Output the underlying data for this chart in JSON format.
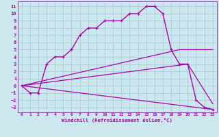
{
  "xlabel": "Windchill (Refroidissement éolien,°C)",
  "bg_color": "#cce8ee",
  "grid_color": "#aad0da",
  "line_color": "#aa00aa",
  "spine_color": "#8844aa",
  "xlim": [
    -0.5,
    23.5
  ],
  "ylim": [
    -3.7,
    11.7
  ],
  "xticks": [
    0,
    1,
    2,
    3,
    4,
    5,
    6,
    7,
    8,
    9,
    10,
    11,
    12,
    13,
    14,
    15,
    16,
    17,
    18,
    19,
    20,
    21,
    22,
    23
  ],
  "yticks": [
    -3,
    -2,
    -1,
    0,
    1,
    2,
    3,
    4,
    5,
    6,
    7,
    8,
    9,
    10,
    11
  ],
  "main_x": [
    0,
    1,
    2,
    3,
    4,
    5,
    6,
    7,
    8,
    9,
    10,
    11,
    12,
    13,
    14,
    15,
    16,
    17,
    18,
    19,
    20,
    21,
    22,
    23
  ],
  "main_y": [
    0,
    -1,
    -1,
    3,
    4,
    4,
    5,
    7,
    8,
    8,
    9,
    9,
    9,
    10,
    10,
    11,
    11,
    10,
    5,
    3,
    3,
    -2,
    -3,
    -3.3
  ],
  "line2_x": [
    0,
    19,
    23
  ],
  "line2_y": [
    0,
    5,
    5
  ],
  "line3_x": [
    0,
    20,
    23
  ],
  "line3_y": [
    0,
    3,
    -2.5
  ],
  "line4_x": [
    0,
    23
  ],
  "line4_y": [
    0,
    -3.3
  ]
}
